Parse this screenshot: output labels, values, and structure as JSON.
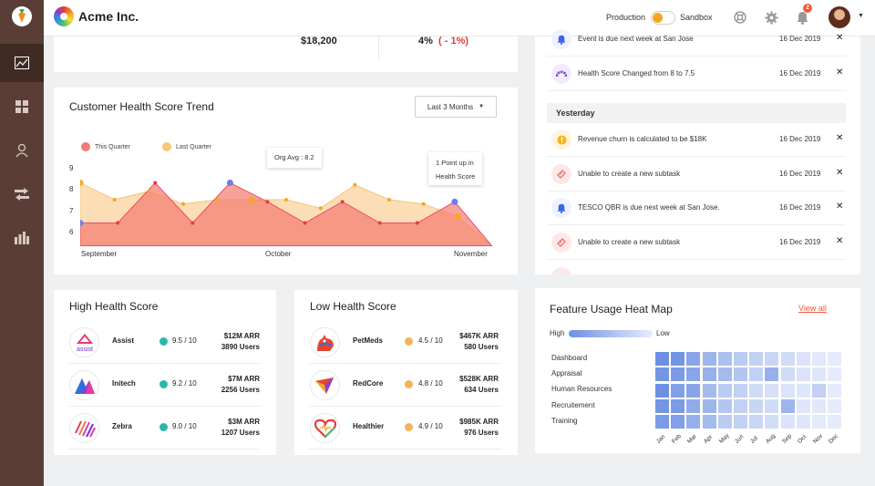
{
  "app": {
    "brand": "Acme Inc."
  },
  "topbar": {
    "production_label": "Production",
    "sandbox_label": "Sandbox",
    "notification_count": "2"
  },
  "kpis": {
    "arr_value": "$18,200",
    "growth_value": "4%",
    "growth_change": "( - 1%)"
  },
  "trend_card": {
    "title": "Customer Health Score Trend",
    "range_label": "Last 3 Months",
    "legend": [
      {
        "name": "This Quarter",
        "color": "#ef7b73"
      },
      {
        "name": "Last Quarter",
        "color": "#f9c674"
      }
    ],
    "tooltip_org": "Org Avg : 8.2",
    "tooltip_point_line1": "1 Point up in",
    "tooltip_point_line2": "Health Score",
    "colors": {
      "this_quarter": "#f47b6e",
      "last_quarter": "#f7c37a",
      "marker_blue": "#6a7ef0"
    }
  },
  "chart_data": {
    "type": "area",
    "title": "Customer Health Score Trend",
    "y_ticks": [
      "9",
      "8",
      "7",
      "6"
    ],
    "x_ticks": [
      "September",
      "October",
      "November"
    ],
    "ylim": [
      5.5,
      9.6
    ],
    "series": [
      {
        "name": "Last Quarter",
        "values": [
          8.5,
          7.7,
          8.1,
          7.5,
          7.7,
          7.7,
          7.7,
          7.3,
          8.4,
          7.7,
          7.5,
          6.9,
          5.5
        ]
      },
      {
        "name": "This Quarter",
        "values": [
          6.6,
          6.6,
          8.5,
          6.6,
          8.5,
          7.6,
          6.6,
          7.6,
          6.6,
          6.6,
          7.6,
          5.5
        ]
      }
    ]
  },
  "activity": {
    "items_top": [
      {
        "text": "Event is due next week at San Jose",
        "date": "16 Dec 2019",
        "icon": "bell-icon",
        "bg": "#eef2ff",
        "fg": "#3b63e6"
      },
      {
        "text": "Health Score Changed from 8 to 7.5",
        "date": "16 Dec 2019",
        "icon": "gauge-icon",
        "bg": "#f3ecff",
        "fg": "#8a44d6"
      }
    ],
    "yesterday_label": "Yesterday",
    "items_yesterday": [
      {
        "text": "Revenue churn is calculated to be $18K",
        "date": "16 Dec 2019",
        "icon": "alert-icon",
        "bg": "#fff4dd",
        "fg": "#f3b51c"
      },
      {
        "text": "Unable to create a new subtask",
        "date": "16 Dec 2019",
        "icon": "ticket-icon",
        "bg": "#fde8e8",
        "fg": "#ec6e6e"
      },
      {
        "text": "TESCO QBR is due next week at San Jose.",
        "date": "16 Dec 2019",
        "icon": "bell-icon",
        "bg": "#eef2ff",
        "fg": "#3b63e6"
      },
      {
        "text": "Unable to create a new subtask",
        "date": "16 Dec 2019",
        "icon": "ticket-icon",
        "bg": "#fde8e8",
        "fg": "#ec6e6e"
      }
    ],
    "close_glyph": "✕"
  },
  "high_health": {
    "title": "High Health Score",
    "rows": [
      {
        "name": "Assist",
        "score": "9.5 / 10",
        "arr": "$12M ARR",
        "users": "3890 Users"
      },
      {
        "name": "Initech",
        "score": "9.2 / 10",
        "arr": "$7M ARR",
        "users": "2256 Users"
      },
      {
        "name": "Zebra",
        "score": "9.0 / 10",
        "arr": "$3M ARR",
        "users": "1207 Users"
      }
    ],
    "dot_color": "#2bb7a7"
  },
  "low_health": {
    "title": "Low Health Score",
    "rows": [
      {
        "name": "PetMeds",
        "score": "4.5 / 10",
        "arr": "$467K ARR",
        "users": "580 Users"
      },
      {
        "name": "RedCore",
        "score": "4.8 / 10",
        "arr": "$528K ARR",
        "users": "634 Users"
      },
      {
        "name": "Healthier",
        "score": "4.9 / 10",
        "arr": "$985K ARR",
        "users": "976 Users"
      }
    ],
    "dot_color": "#f5b25a"
  },
  "heatmap": {
    "title": "Feature Usage Heat Map",
    "view_all": "View all",
    "high_label": "High",
    "low_label": "Low",
    "features": [
      "Dashboard",
      "Appraisal",
      "Human Resources",
      "Recruitement",
      "Training"
    ],
    "months": [
      "Jan",
      "Feb",
      "Mar",
      "Apr",
      "May",
      "Jun",
      "Jul",
      "Aug",
      "Sep",
      "Oct",
      "Nov",
      "Dec"
    ],
    "intensity": [
      [
        0.9,
        0.85,
        0.7,
        0.55,
        0.45,
        0.35,
        0.3,
        0.25,
        0.2,
        0.12,
        0.08,
        0.05
      ],
      [
        0.85,
        0.8,
        0.7,
        0.6,
        0.5,
        0.4,
        0.3,
        0.6,
        0.2,
        0.12,
        0.1,
        0.05
      ],
      [
        0.9,
        0.75,
        0.7,
        0.5,
        0.35,
        0.3,
        0.2,
        0.15,
        0.12,
        0.1,
        0.3,
        0.05
      ],
      [
        0.85,
        0.8,
        0.65,
        0.55,
        0.4,
        0.3,
        0.25,
        0.2,
        0.55,
        0.1,
        0.08,
        0.05
      ],
      [
        0.8,
        0.75,
        0.6,
        0.5,
        0.35,
        0.3,
        0.25,
        0.18,
        0.12,
        0.1,
        0.06,
        0.05
      ]
    ],
    "color": "#5f85e0"
  }
}
